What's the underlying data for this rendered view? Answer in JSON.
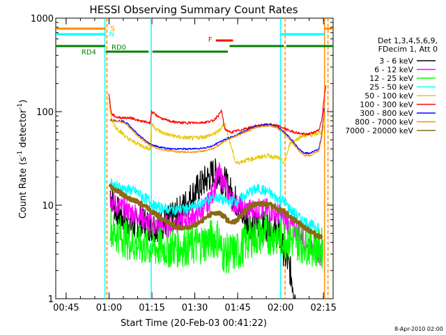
{
  "chart_data": {
    "type": "line",
    "title": "HESSI Observing Summary Count Rates",
    "xlabel": "Start Time (20-Feb-03 00:41:22)",
    "ylabel_parts": [
      "Count Rate (s",
      "-1",
      " detector",
      "-1",
      ")"
    ],
    "x_unit": "minutes since 00:41:22",
    "xlim": [
      0,
      97
    ],
    "ylim": [
      1,
      1000
    ],
    "yscale": "log",
    "x_ticks": [
      {
        "x": 3.63,
        "label": "00:45"
      },
      {
        "x": 18.63,
        "label": "01:00"
      },
      {
        "x": 33.63,
        "label": "01:15"
      },
      {
        "x": 48.63,
        "label": "01:30"
      },
      {
        "x": 63.63,
        "label": "01:45"
      },
      {
        "x": 78.63,
        "label": "02:00"
      },
      {
        "x": 93.63,
        "label": "02:15"
      }
    ],
    "y_ticks": [
      {
        "y": 1,
        "label": "1"
      },
      {
        "y": 10,
        "label": "10"
      },
      {
        "y": 100,
        "label": "100"
      },
      {
        "y": 1000,
        "label": "1000"
      }
    ],
    "legend_header": [
      "Det 1,3,4,5,6,9,",
      "FDecim 1, Att 0"
    ],
    "legend_position": "right",
    "series": [
      {
        "name": "3 - 6 keV",
        "color": "#000000",
        "points": [
          [
            19,
            14
          ],
          [
            21,
            9
          ],
          [
            24,
            7
          ],
          [
            27,
            6
          ],
          [
            30,
            7
          ],
          [
            33,
            6
          ],
          [
            36,
            6
          ],
          [
            40,
            7
          ],
          [
            44,
            9
          ],
          [
            48,
            13
          ],
          [
            52,
            18
          ],
          [
            55,
            22
          ],
          [
            57,
            21
          ],
          [
            59,
            18
          ],
          [
            61,
            14
          ],
          [
            63,
            11
          ],
          [
            64,
            10
          ],
          [
            66,
            7
          ],
          [
            70,
            6
          ],
          [
            74,
            6
          ],
          [
            78,
            5
          ],
          [
            80,
            3
          ],
          [
            82,
            2
          ],
          [
            84,
            1
          ]
        ]
      },
      {
        "name": "6 - 12 keV",
        "color": "#ff00ff",
        "points": [
          [
            19,
            12
          ],
          [
            21,
            10
          ],
          [
            24,
            9
          ],
          [
            28,
            8
          ],
          [
            31,
            7
          ],
          [
            35,
            6
          ],
          [
            40,
            6
          ],
          [
            45,
            7
          ],
          [
            50,
            8
          ],
          [
            53,
            10
          ],
          [
            55,
            14
          ],
          [
            57,
            22
          ],
          [
            59,
            17
          ],
          [
            61,
            12
          ],
          [
            63,
            10
          ],
          [
            66,
            9
          ],
          [
            70,
            9
          ],
          [
            74,
            9
          ],
          [
            78,
            8
          ],
          [
            80,
            7
          ],
          [
            82,
            6
          ],
          [
            85,
            5
          ],
          [
            88,
            4
          ],
          [
            90,
            4
          ],
          [
            92,
            3
          ],
          [
            93,
            3
          ]
        ]
      },
      {
        "name": "12 - 25 keV",
        "color": "#00ff00",
        "points": [
          [
            19,
            7
          ],
          [
            20,
            5
          ],
          [
            22,
            5
          ],
          [
            24,
            4.5
          ],
          [
            28,
            3.8
          ],
          [
            32,
            3.6
          ],
          [
            36,
            3.5
          ],
          [
            40,
            3.5
          ],
          [
            44,
            3.6
          ],
          [
            48,
            3.7
          ],
          [
            52,
            4.0
          ],
          [
            55,
            4.4
          ],
          [
            57,
            4.5
          ],
          [
            58,
            3.2
          ],
          [
            60,
            3.0
          ],
          [
            64,
            3.2
          ],
          [
            68,
            4.6
          ],
          [
            72,
            4.8
          ],
          [
            76,
            4.8
          ],
          [
            80,
            4.4
          ],
          [
            84,
            4.2
          ],
          [
            88,
            3.8
          ],
          [
            92,
            3.5
          ],
          [
            93.5,
            3.5
          ]
        ]
      },
      {
        "name": "25 - 50 keV",
        "color": "#00ffff",
        "points": [
          [
            19,
            18
          ],
          [
            21,
            16
          ],
          [
            24,
            15
          ],
          [
            28,
            14
          ],
          [
            31,
            12
          ],
          [
            33,
            11
          ],
          [
            34,
            10
          ],
          [
            36,
            9.5
          ],
          [
            40,
            9
          ],
          [
            44,
            9
          ],
          [
            48,
            9.5
          ],
          [
            52,
            11
          ],
          [
            55,
            12
          ],
          [
            57,
            12
          ],
          [
            59,
            11
          ],
          [
            61,
            11
          ],
          [
            63,
            11
          ],
          [
            65,
            12
          ],
          [
            68,
            14
          ],
          [
            71,
            15
          ],
          [
            74,
            14
          ],
          [
            77,
            12
          ],
          [
            80,
            11
          ],
          [
            82,
            9
          ],
          [
            84,
            8
          ],
          [
            86,
            7
          ],
          [
            88,
            6.5
          ],
          [
            90,
            6
          ],
          [
            92,
            6
          ]
        ]
      },
      {
        "name": "50 - 100 keV",
        "color": "#e8c800",
        "points": [
          [
            18.5,
            140
          ],
          [
            19.5,
            82
          ],
          [
            21,
            68
          ],
          [
            23,
            60
          ],
          [
            25,
            52
          ],
          [
            27,
            48
          ],
          [
            29,
            45
          ],
          [
            31,
            42
          ],
          [
            33,
            40
          ],
          [
            33.5,
            74
          ],
          [
            35,
            66
          ],
          [
            37,
            60
          ],
          [
            40,
            56
          ],
          [
            44,
            53
          ],
          [
            48,
            52
          ],
          [
            52,
            54
          ],
          [
            55,
            57
          ],
          [
            57,
            62
          ],
          [
            59,
            76
          ],
          [
            61,
            46
          ],
          [
            63,
            28
          ],
          [
            66,
            30
          ],
          [
            70,
            32
          ],
          [
            74,
            34
          ],
          [
            78,
            32
          ],
          [
            80,
            28
          ],
          [
            82,
            47
          ],
          [
            84,
            50
          ],
          [
            86,
            55
          ],
          [
            89,
            56
          ],
          [
            91,
            58
          ],
          [
            93,
            60
          ],
          [
            94,
            75
          ]
        ]
      },
      {
        "name": "100 - 300 keV",
        "color": "#ff0000",
        "points": [
          [
            18.5,
            160
          ],
          [
            19.5,
            95
          ],
          [
            21,
            88
          ],
          [
            23,
            86
          ],
          [
            25,
            86
          ],
          [
            27,
            85
          ],
          [
            29,
            80
          ],
          [
            31,
            78
          ],
          [
            33,
            76
          ],
          [
            33.5,
            100
          ],
          [
            35,
            92
          ],
          [
            38,
            82
          ],
          [
            41,
            78
          ],
          [
            44,
            76
          ],
          [
            48,
            76
          ],
          [
            52,
            77
          ],
          [
            55,
            80
          ],
          [
            57,
            92
          ],
          [
            58,
            103
          ],
          [
            59,
            66
          ],
          [
            61,
            60
          ],
          [
            64,
            63
          ],
          [
            68,
            68
          ],
          [
            72,
            72
          ],
          [
            75,
            73
          ],
          [
            78,
            70
          ],
          [
            80,
            66
          ],
          [
            82,
            62
          ],
          [
            84,
            60
          ],
          [
            86,
            58
          ],
          [
            88,
            57
          ],
          [
            90,
            60
          ],
          [
            92,
            64
          ],
          [
            93,
            80
          ],
          [
            94,
            150
          ],
          [
            94.5,
            200
          ]
        ]
      },
      {
        "name": "300 - 800 keV",
        "color": "#0000ff",
        "points": [
          [
            19,
            82
          ],
          [
            21,
            80
          ],
          [
            23,
            80
          ],
          [
            25,
            75
          ],
          [
            27,
            65
          ],
          [
            29,
            56
          ],
          [
            31,
            50
          ],
          [
            33,
            45
          ],
          [
            34,
            44
          ],
          [
            36,
            42
          ],
          [
            40,
            40
          ],
          [
            44,
            40
          ],
          [
            48,
            40
          ],
          [
            52,
            41
          ],
          [
            55,
            43
          ],
          [
            57,
            47
          ],
          [
            59,
            50
          ],
          [
            61,
            53
          ],
          [
            63,
            56
          ],
          [
            66,
            62
          ],
          [
            69,
            68
          ],
          [
            72,
            72
          ],
          [
            75,
            73
          ],
          [
            77,
            70
          ],
          [
            79,
            64
          ],
          [
            81,
            56
          ],
          [
            83,
            48
          ],
          [
            85,
            40
          ],
          [
            87,
            36
          ],
          [
            89,
            36
          ],
          [
            91,
            39
          ],
          [
            92,
            40
          ],
          [
            93,
            55
          ],
          [
            94,
            120
          ]
        ]
      },
      {
        "name": "800 - 7000 keV",
        "color": "#ff8c00",
        "points": [
          [
            19,
            80
          ],
          [
            21,
            79
          ],
          [
            23,
            78
          ],
          [
            25,
            72
          ],
          [
            27,
            62
          ],
          [
            29,
            54
          ],
          [
            31,
            48
          ],
          [
            33,
            44
          ],
          [
            34,
            42
          ],
          [
            36,
            40
          ],
          [
            40,
            38
          ],
          [
            44,
            37
          ],
          [
            48,
            37
          ],
          [
            52,
            38
          ],
          [
            55,
            40
          ],
          [
            57,
            44
          ],
          [
            59,
            48
          ],
          [
            61,
            52
          ],
          [
            63,
            55
          ],
          [
            66,
            60
          ],
          [
            69,
            66
          ],
          [
            72,
            70
          ],
          [
            75,
            71
          ],
          [
            77,
            68
          ],
          [
            79,
            62
          ],
          [
            81,
            54
          ],
          [
            83,
            46
          ],
          [
            85,
            38
          ],
          [
            87,
            34
          ],
          [
            89,
            34
          ],
          [
            91,
            37
          ],
          [
            92,
            38
          ],
          [
            93,
            52
          ],
          [
            94,
            110
          ]
        ]
      },
      {
        "name": "7000 - 20000 keV",
        "color": "#8b6914",
        "points": [
          [
            19,
            16
          ],
          [
            20,
            15
          ],
          [
            22,
            14
          ],
          [
            25,
            12
          ],
          [
            28,
            11
          ],
          [
            31,
            10
          ],
          [
            34,
            8.5
          ],
          [
            37,
            7.2
          ],
          [
            40,
            6.3
          ],
          [
            43,
            5.8
          ],
          [
            46,
            5.7
          ],
          [
            49,
            6.2
          ],
          [
            52,
            7.2
          ],
          [
            55,
            8.2
          ],
          [
            57,
            8.3
          ],
          [
            59,
            7.5
          ],
          [
            61,
            6.5
          ],
          [
            63,
            6.8
          ],
          [
            66,
            8.5
          ],
          [
            69,
            10
          ],
          [
            72,
            10.5
          ],
          [
            75,
            10
          ],
          [
            78,
            9
          ],
          [
            81,
            8
          ],
          [
            84,
            6.8
          ],
          [
            87,
            5.8
          ],
          [
            90,
            5
          ],
          [
            93,
            4.5
          ]
        ]
      }
    ],
    "attenuator_levels": [
      {
        "label": "S",
        "color": "#ff8c00",
        "segments": [
          [
            0,
            17.5
          ],
          [
            94,
            97
          ]
        ]
      },
      {
        "label": "N",
        "color": "#00ffff",
        "segments": [
          [
            0,
            17.5
          ],
          [
            78.5,
            94
          ]
        ]
      }
    ],
    "flags": [
      {
        "label": "RD0",
        "color": "#008000",
        "segments": [
          [
            17.5,
            32.5
          ],
          [
            33.8,
            60.2
          ]
        ]
      },
      {
        "label": "RD4",
        "color": "#008000",
        "segments": [
          [
            0,
            17.2
          ],
          [
            60.8,
            79.8
          ],
          [
            80.6,
            97
          ]
        ]
      },
      {
        "label": "F",
        "color": "#ff0000",
        "segments": [
          [
            56,
            62
          ]
        ]
      }
    ],
    "vertical_markers": [
      {
        "x": 17.2,
        "color": "#00ffff",
        "style": "solid"
      },
      {
        "x": 17.9,
        "color": "#ff8c00",
        "style": "dashed"
      },
      {
        "x": 33.4,
        "color": "#00ffff",
        "style": "solid"
      },
      {
        "x": 78.6,
        "color": "#00ffff",
        "style": "solid"
      },
      {
        "x": 80.2,
        "color": "#ff8c00",
        "style": "dashed"
      },
      {
        "x": 94.0,
        "color": "#ff8c00",
        "style": "solid"
      },
      {
        "x": 95.2,
        "color": "#ff8c00",
        "style": "dashed"
      }
    ],
    "footer_date": "8-Apr-2010 02:00"
  }
}
